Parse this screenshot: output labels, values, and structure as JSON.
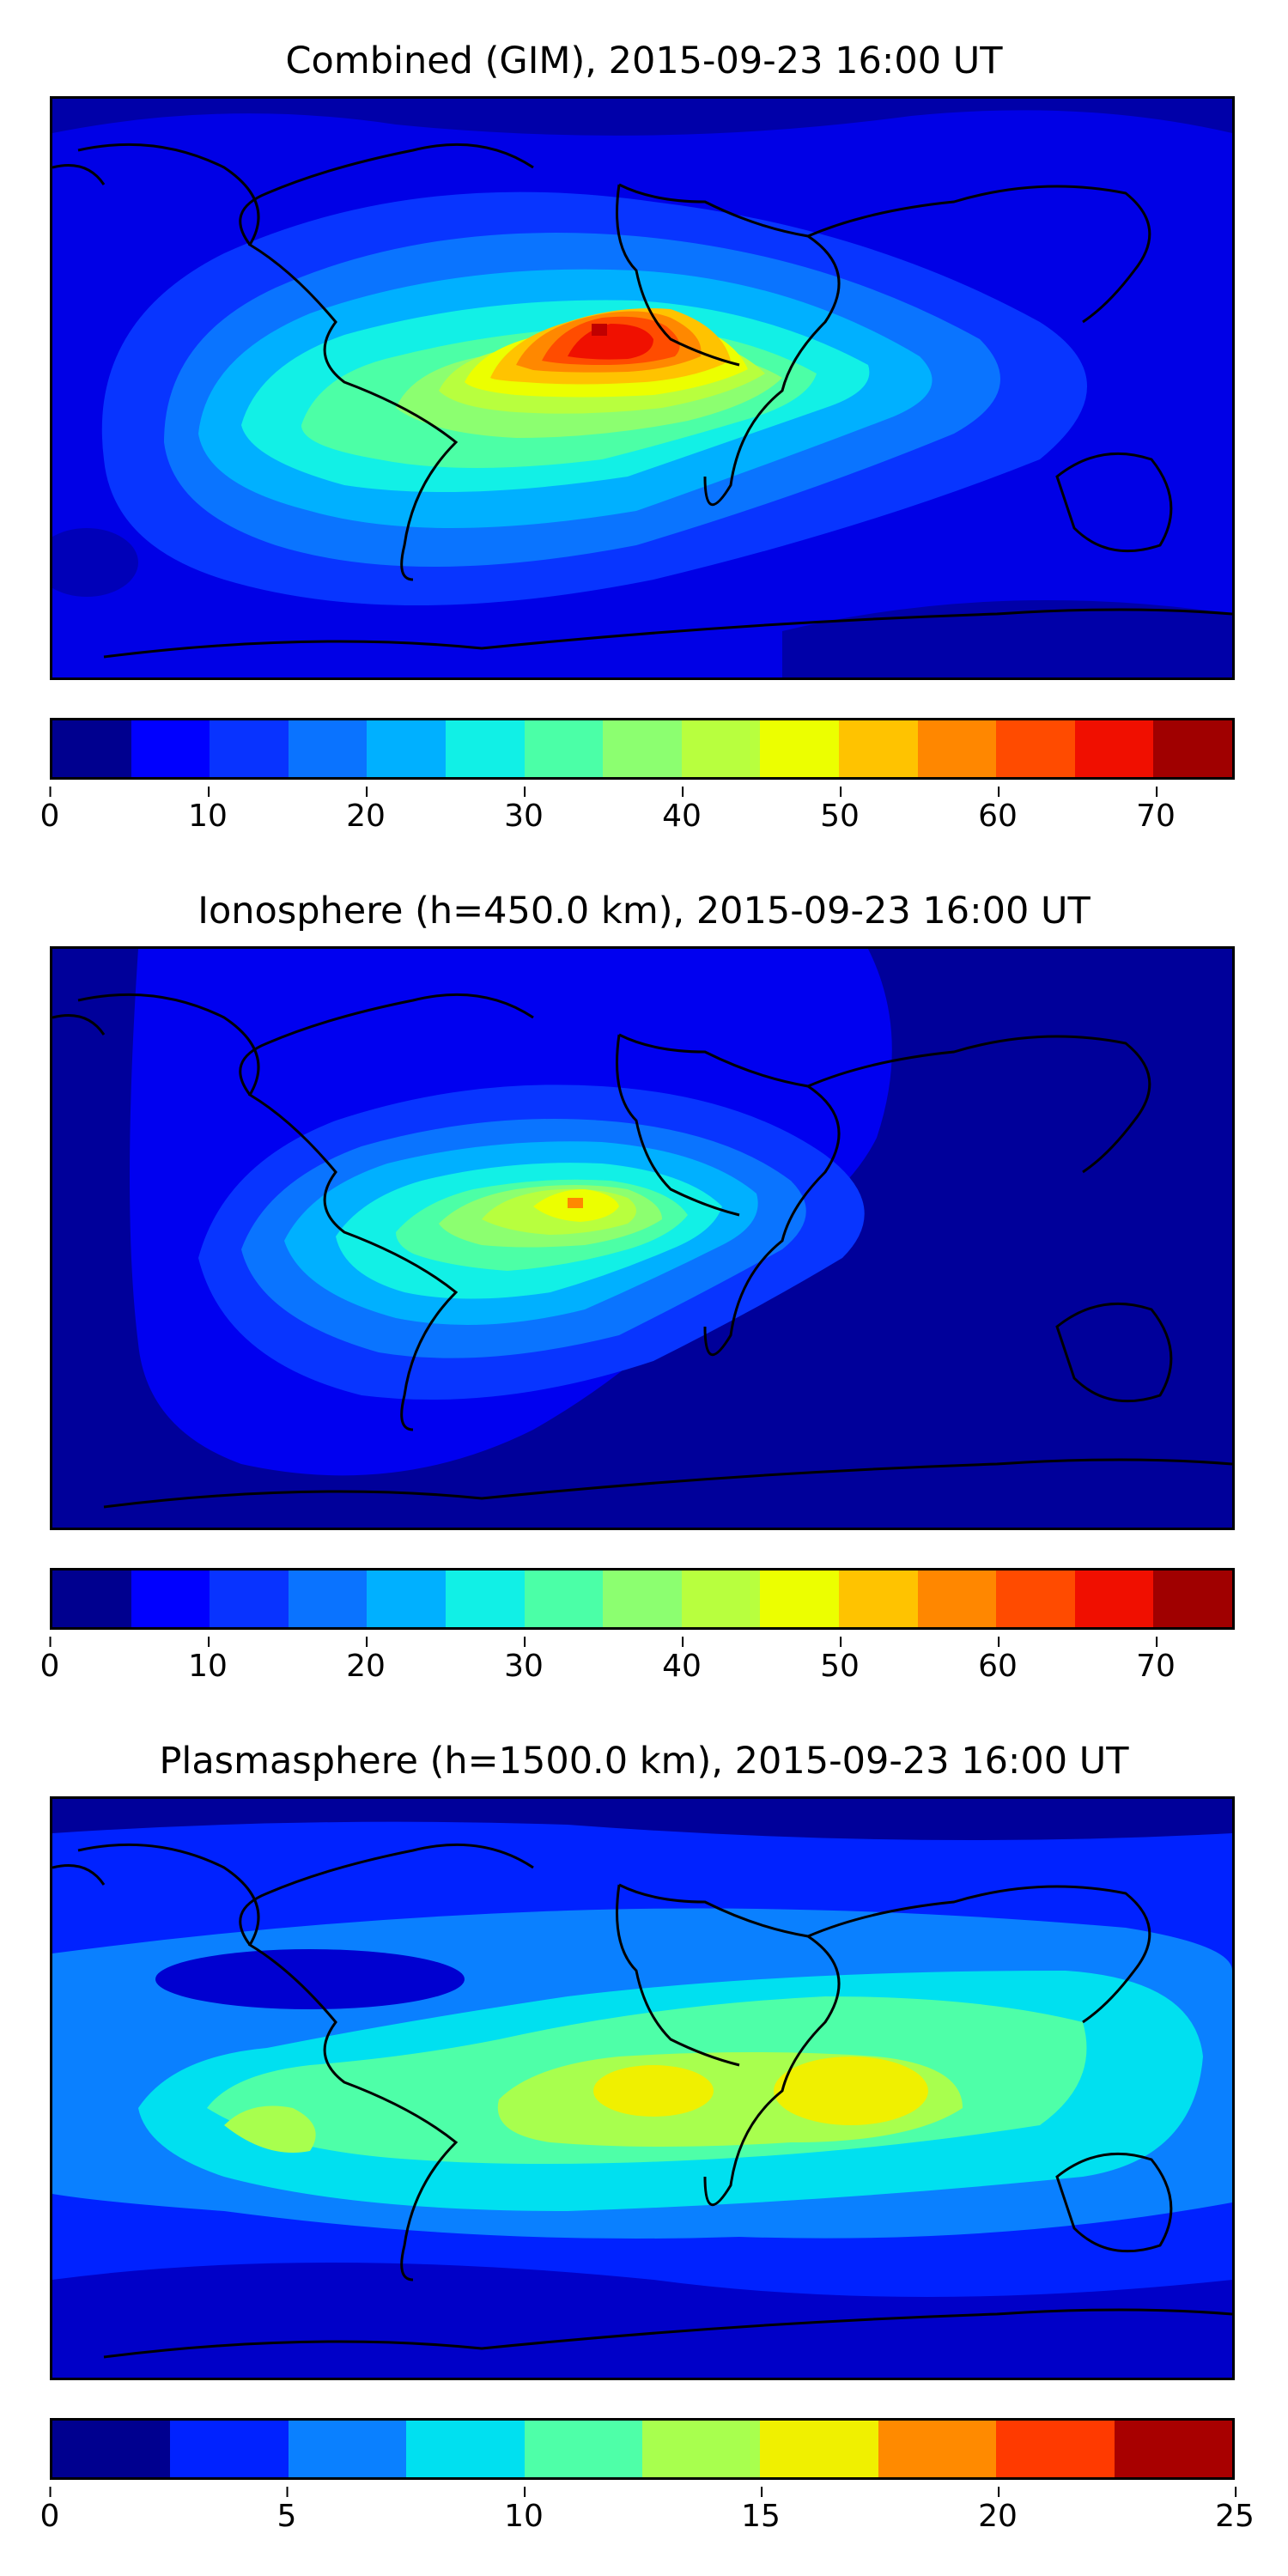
{
  "panels": [
    {
      "title": "Combined (GIM), 2015-09-23 16:00 UT",
      "colorbar": {
        "colors": [
          "#00008f",
          "#0000ff",
          "#0833ff",
          "#0a73ff",
          "#00b0ff",
          "#11f0e6",
          "#4bffa7",
          "#8cff70",
          "#b8ff3e",
          "#ecff00",
          "#ffc300",
          "#ff8700",
          "#ff4b00",
          "#f00f00",
          "#a00000"
        ],
        "ticks": [
          "0",
          "10",
          "20",
          "30",
          "40",
          "50",
          "60",
          "70"
        ],
        "tick_values": [
          0,
          10,
          20,
          30,
          40,
          50,
          60,
          70
        ],
        "range": [
          0,
          75
        ]
      }
    },
    {
      "title": "Ionosphere  (h=450.0 km), 2015-09-23 16:00 UT",
      "colorbar": {
        "colors": [
          "#00008f",
          "#0000ff",
          "#0833ff",
          "#0a73ff",
          "#00b0ff",
          "#11f0e6",
          "#4bffa7",
          "#8cff70",
          "#b8ff3e",
          "#ecff00",
          "#ffc300",
          "#ff8700",
          "#ff4b00",
          "#f00f00",
          "#a00000"
        ],
        "ticks": [
          "0",
          "10",
          "20",
          "30",
          "40",
          "50",
          "60",
          "70"
        ],
        "tick_values": [
          0,
          10,
          20,
          30,
          40,
          50,
          60,
          70
        ],
        "range": [
          0,
          75
        ]
      }
    },
    {
      "title": "Plasmasphere (h=1500.0 km), 2015-09-23 16:00 UT",
      "colorbar": {
        "colors": [
          "#00008f",
          "#0022ff",
          "#0a80ff",
          "#00e0f0",
          "#4effa8",
          "#a8ff4e",
          "#f0f000",
          "#ff8a00",
          "#ff3a00",
          "#a80000"
        ],
        "ticks": [
          "0",
          "5",
          "10",
          "15",
          "20",
          "25"
        ],
        "tick_values": [
          0,
          5,
          10,
          15,
          20,
          25
        ],
        "range": [
          0,
          25
        ]
      }
    }
  ]
}
